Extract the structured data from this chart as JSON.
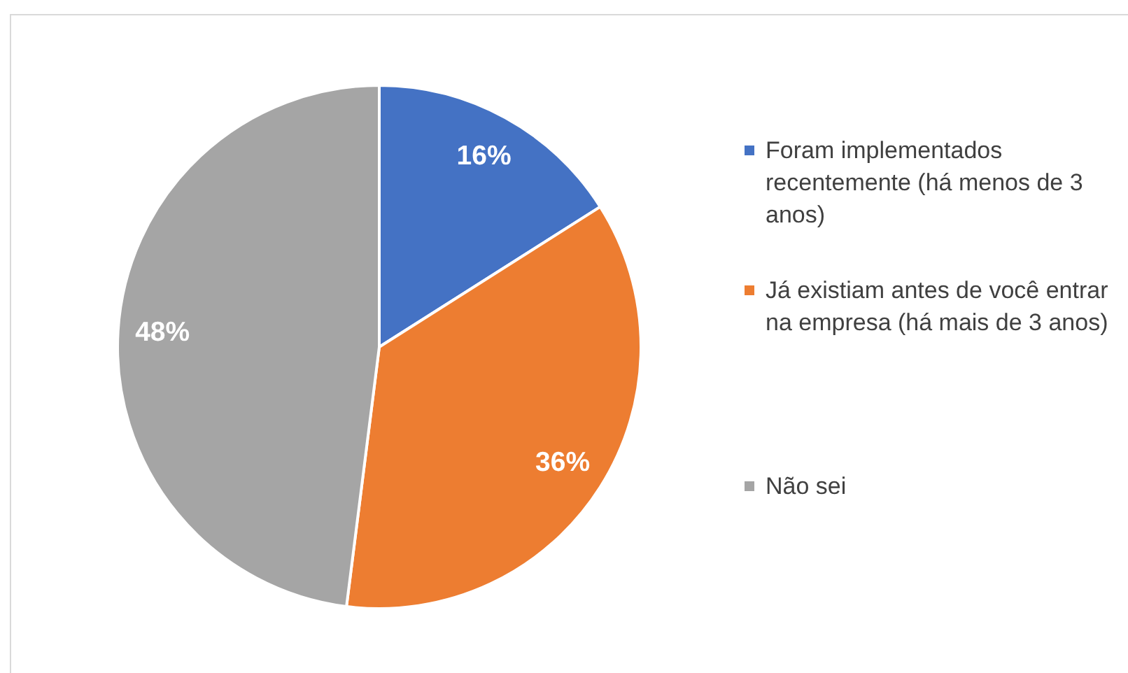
{
  "chart_data": {
    "type": "pie",
    "categories": [
      "Foram implementados recentemente (há menos de 3 anos)",
      "Já existiam antes de você entrar na empresa (há mais de 3 anos)",
      "Não sei"
    ],
    "values": [
      16,
      36,
      48
    ],
    "colors": [
      "#4472c4",
      "#ed7d31",
      "#a5a5a5"
    ],
    "value_labels": [
      "16%",
      "36%",
      "48%"
    ],
    "legend": "right"
  }
}
